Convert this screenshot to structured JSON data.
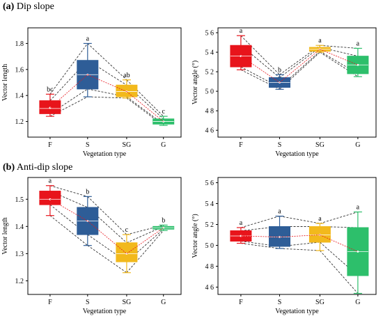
{
  "panels": [
    {
      "letter": "(a)",
      "title": "Dip slope"
    },
    {
      "letter": "(b)",
      "title": "Anti-dip slope"
    }
  ],
  "chart_data": [
    {
      "type": "box",
      "categories": [
        "F",
        "S",
        "SG",
        "G"
      ],
      "colors": [
        "#e8141b",
        "#2e5d97",
        "#f2b91c",
        "#2dbf6b"
      ],
      "xlabel": "Vegetation type",
      "ylabel": "Vector length",
      "ylim": [
        1.08,
        1.92
      ],
      "yticks": [
        1.2,
        1.4,
        1.6,
        1.8
      ],
      "ytick_labels": [
        "1.2",
        "1.4",
        "1.6",
        "1.8"
      ],
      "boxes": [
        {
          "min": 1.24,
          "q1": 1.26,
          "median": 1.3,
          "mean": 1.305,
          "q3": 1.36,
          "max": 1.41
        },
        {
          "min": 1.39,
          "q1": 1.45,
          "median": 1.56,
          "mean": 1.56,
          "q3": 1.67,
          "max": 1.8
        },
        {
          "min": 1.38,
          "q1": 1.39,
          "median": 1.43,
          "mean": 1.43,
          "q3": 1.48,
          "max": 1.52
        },
        {
          "min": 1.17,
          "q1": 1.18,
          "median": 1.2,
          "mean": 1.2,
          "q3": 1.22,
          "max": 1.24
        }
      ],
      "letters": [
        "bc",
        "a",
        "ab",
        "c"
      ]
    },
    {
      "type": "box",
      "categories": [
        "F",
        "S",
        "SG",
        "G"
      ],
      "colors": [
        "#e8141b",
        "#2e5d97",
        "#f2b91c",
        "#2dbf6b"
      ],
      "xlabel": "Vegetation type",
      "ylabel": "Vector angle (°)",
      "ylim": [
        4.53,
        5.65
      ],
      "yticks": [
        4.6,
        4.8,
        5.0,
        5.2,
        5.4,
        5.6
      ],
      "ytick_labels": [
        "4 6",
        "4 8",
        "5 0",
        "5 2",
        "5 4",
        "5 6"
      ],
      "boxes": [
        {
          "min": 5.22,
          "q1": 5.25,
          "median": 5.36,
          "mean": 5.36,
          "q3": 5.47,
          "max": 5.57
        },
        {
          "min": 5.02,
          "q1": 5.04,
          "median": 5.09,
          "mean": 5.09,
          "q3": 5.14,
          "max": 5.17
        },
        {
          "min": 5.4,
          "q1": 5.41,
          "median": 5.43,
          "mean": 5.43,
          "q3": 5.45,
          "max": 5.47
        },
        {
          "min": 5.15,
          "q1": 5.18,
          "median": 5.27,
          "mean": 5.27,
          "q3": 5.36,
          "max": 5.44
        }
      ],
      "letters": [
        "a",
        "b",
        "a",
        "a"
      ]
    },
    {
      "type": "box",
      "categories": [
        "F",
        "S",
        "SG",
        "G"
      ],
      "colors": [
        "#e8141b",
        "#2e5d97",
        "#f2b91c",
        "#2dbf6b"
      ],
      "xlabel": "Vegetation type",
      "ylabel": "Vector length",
      "ylim": [
        1.15,
        1.58
      ],
      "yticks": [
        1.2,
        1.3,
        1.4,
        1.5
      ],
      "ytick_labels": [
        "1.2",
        "1.3",
        "1.4",
        "1.5"
      ],
      "boxes": [
        {
          "min": 1.44,
          "q1": 1.48,
          "median": 1.5,
          "mean": 1.5,
          "q3": 1.53,
          "max": 1.55
        },
        {
          "min": 1.33,
          "q1": 1.37,
          "median": 1.42,
          "mean": 1.42,
          "q3": 1.47,
          "max": 1.51
        },
        {
          "min": 1.23,
          "q1": 1.27,
          "median": 1.3,
          "mean": 1.3,
          "q3": 1.34,
          "max": 1.37
        },
        {
          "min": 1.385,
          "q1": 1.39,
          "median": 1.395,
          "mean": 1.395,
          "q3": 1.4,
          "max": 1.405
        }
      ],
      "letters": [
        "a",
        "b",
        "c",
        "b"
      ]
    },
    {
      "type": "box",
      "categories": [
        "F",
        "S",
        "SG",
        "G"
      ],
      "colors": [
        "#e8141b",
        "#2e5d97",
        "#f2b91c",
        "#2dbf6b"
      ],
      "xlabel": "Vegetation type",
      "ylabel": "Vector angle (°)",
      "ylim": [
        4.53,
        5.65
      ],
      "yticks": [
        4.6,
        4.8,
        5.0,
        5.2,
        5.4,
        5.6
      ],
      "ytick_labels": [
        "4 6",
        "4 8",
        "5 0",
        "5 2",
        "5 4",
        "5 6"
      ],
      "boxes": [
        {
          "min": 5.02,
          "q1": 5.04,
          "median": 5.09,
          "mean": 5.09,
          "q3": 5.14,
          "max": 5.17
        },
        {
          "min": 4.97,
          "q1": 4.99,
          "median": 5.08,
          "mean": 5.08,
          "q3": 5.18,
          "max": 5.28
        },
        {
          "min": 4.95,
          "q1": 5.03,
          "median": 5.1,
          "mean": 5.1,
          "q3": 5.18,
          "max": 5.21
        },
        {
          "min": 4.54,
          "q1": 4.71,
          "median": 4.94,
          "mean": 4.94,
          "q3": 5.17,
          "max": 5.32
        }
      ],
      "letters": [
        "a",
        "a",
        "a",
        "a"
      ]
    }
  ]
}
